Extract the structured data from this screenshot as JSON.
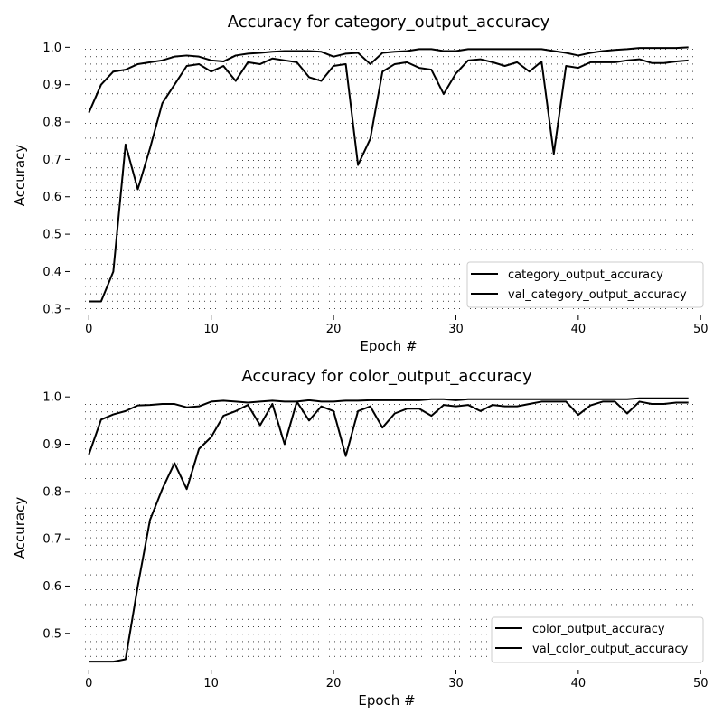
{
  "chart_data": [
    {
      "type": "line",
      "title": "Accuracy for category_output_accuracy",
      "xlabel": "Epoch #",
      "ylabel": "Accuracy",
      "xlim": [
        -1.5,
        50.5
      ],
      "ylim": [
        0.285,
        1.025
      ],
      "xticks": [
        0,
        10,
        20,
        30,
        40,
        50
      ],
      "yticks": [
        0.3,
        0.4,
        0.5,
        0.6,
        0.7,
        0.8,
        0.9,
        1.0
      ],
      "grid": false,
      "legend_position": "lower-right",
      "x": [
        0,
        1,
        2,
        3,
        4,
        5,
        6,
        7,
        8,
        9,
        10,
        11,
        12,
        13,
        14,
        15,
        16,
        17,
        18,
        19,
        20,
        21,
        22,
        23,
        24,
        25,
        26,
        27,
        28,
        29,
        30,
        31,
        32,
        33,
        34,
        35,
        36,
        37,
        38,
        39,
        40,
        41,
        42,
        43,
        44,
        45,
        46,
        47,
        48,
        49
      ],
      "series": [
        {
          "name": "category_output_accuracy",
          "values": [
            0.825,
            0.9,
            0.935,
            0.94,
            0.955,
            0.96,
            0.965,
            0.975,
            0.978,
            0.975,
            0.965,
            0.962,
            0.978,
            0.983,
            0.985,
            0.988,
            0.99,
            0.99,
            0.99,
            0.988,
            0.975,
            0.983,
            0.985,
            0.955,
            0.985,
            0.988,
            0.99,
            0.995,
            0.995,
            0.99,
            0.99,
            0.995,
            0.995,
            0.995,
            0.995,
            0.995,
            0.995,
            0.995,
            0.99,
            0.985,
            0.978,
            0.985,
            0.99,
            0.993,
            0.995,
            0.998,
            0.998,
            0.998,
            0.998,
            1.0
          ]
        },
        {
          "name": "val_category_output_accuracy",
          "values": [
            0.32,
            0.32,
            0.4,
            0.74,
            0.62,
            0.73,
            0.85,
            0.9,
            0.95,
            0.955,
            0.935,
            0.95,
            0.91,
            0.96,
            0.955,
            0.97,
            0.965,
            0.96,
            0.92,
            0.91,
            0.95,
            0.955,
            0.685,
            0.755,
            0.935,
            0.955,
            0.96,
            0.945,
            0.94,
            0.875,
            0.93,
            0.965,
            0.968,
            0.96,
            0.95,
            0.96,
            0.935,
            0.962,
            0.715,
            0.95,
            0.945,
            0.96,
            0.96,
            0.96,
            0.965,
            0.968,
            0.958,
            0.958,
            0.962,
            0.965
          ]
        }
      ]
    },
    {
      "type": "line",
      "title": "Accuracy for color_output_accuracy",
      "xlabel": "Epoch #",
      "ylabel": "Accuracy",
      "xlim": [
        -1.5,
        50.5
      ],
      "ylim": [
        0.425,
        1.008
      ],
      "xticks": [
        0,
        10,
        20,
        30,
        40,
        50
      ],
      "yticks": [
        0.5,
        0.6,
        0.7,
        0.8,
        0.9,
        1.0
      ],
      "grid": false,
      "legend_position": "lower-right",
      "x": [
        0,
        1,
        2,
        3,
        4,
        5,
        6,
        7,
        8,
        9,
        10,
        11,
        12,
        13,
        14,
        15,
        16,
        17,
        18,
        19,
        20,
        21,
        22,
        23,
        24,
        25,
        26,
        27,
        28,
        29,
        30,
        31,
        32,
        33,
        34,
        35,
        36,
        37,
        38,
        39,
        40,
        41,
        42,
        43,
        44,
        45,
        46,
        47,
        48,
        49
      ],
      "series": [
        {
          "name": "color_output_accuracy",
          "values": [
            0.878,
            0.952,
            0.963,
            0.97,
            0.982,
            0.983,
            0.985,
            0.985,
            0.978,
            0.98,
            0.99,
            0.992,
            0.99,
            0.988,
            0.99,
            0.992,
            0.99,
            0.99,
            0.993,
            0.99,
            0.99,
            0.992,
            0.992,
            0.993,
            0.993,
            0.993,
            0.993,
            0.993,
            0.995,
            0.995,
            0.993,
            0.995,
            0.995,
            0.995,
            0.995,
            0.995,
            0.995,
            0.995,
            0.995,
            0.995,
            0.995,
            0.995,
            0.995,
            0.995,
            0.995,
            0.997,
            0.997,
            0.997,
            0.997,
            0.997
          ]
        },
        {
          "name": "val_color_output_accuracy",
          "values": [
            0.44,
            0.44,
            0.44,
            0.445,
            0.6,
            0.74,
            0.805,
            0.86,
            0.805,
            0.89,
            0.915,
            0.96,
            0.97,
            0.983,
            0.94,
            0.985,
            0.9,
            0.99,
            0.95,
            0.98,
            0.97,
            0.875,
            0.97,
            0.98,
            0.935,
            0.965,
            0.975,
            0.975,
            0.96,
            0.983,
            0.98,
            0.983,
            0.97,
            0.983,
            0.98,
            0.98,
            0.985,
            0.99,
            0.99,
            0.99,
            0.962,
            0.982,
            0.99,
            0.99,
            0.965,
            0.99,
            0.985,
            0.985,
            0.988,
            0.988
          ]
        }
      ]
    }
  ]
}
